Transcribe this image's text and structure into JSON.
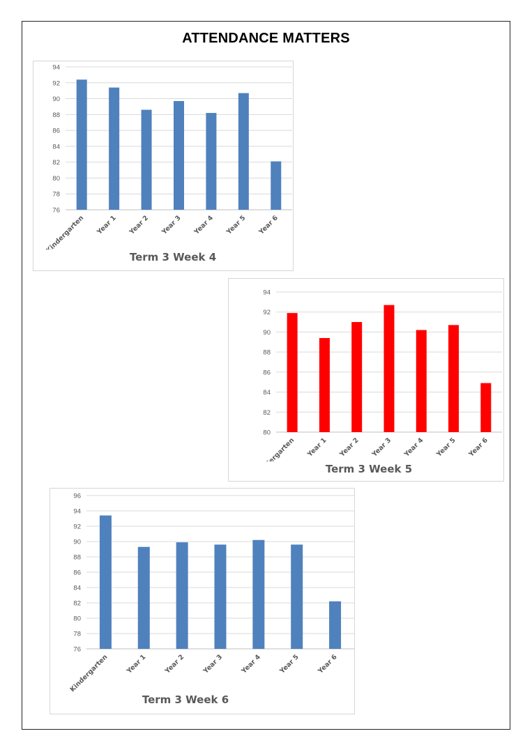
{
  "page": {
    "title": "ATTENDANCE MATTERS"
  },
  "chart_data": [
    {
      "type": "bar",
      "title": "Term 3 Week 4",
      "categories": [
        "Kindergarten",
        "Year 1",
        "Year 2",
        "Year 3",
        "Year 4",
        "Year 5",
        "Year 6"
      ],
      "values": [
        92.4,
        91.4,
        88.6,
        89.7,
        88.2,
        90.7,
        82.1
      ],
      "ylim": [
        76,
        94
      ],
      "yticks": [
        76,
        78,
        80,
        82,
        84,
        86,
        88,
        90,
        92,
        94
      ],
      "color": "#4f81bd",
      "grid": true,
      "legend": "none"
    },
    {
      "type": "bar",
      "title": "Term 3 Week 5",
      "categories": [
        "Kindergarten",
        "Year 1",
        "Year 2",
        "Year 3",
        "Year 4",
        "Year 5",
        "Year 6"
      ],
      "values": [
        91.9,
        89.4,
        91.0,
        92.7,
        90.2,
        90.7,
        84.9
      ],
      "ylim": [
        80,
        94
      ],
      "yticks": [
        80,
        82,
        84,
        86,
        88,
        90,
        92,
        94
      ],
      "color": "#ff0000",
      "grid": true,
      "legend": "none"
    },
    {
      "type": "bar",
      "title": "Term 3 Week 6",
      "categories": [
        "Kindergarten",
        "Year 1",
        "Year 2",
        "Year 3",
        "Year 4",
        "Year 5",
        "Year 6"
      ],
      "values": [
        93.4,
        89.3,
        89.9,
        89.6,
        90.2,
        89.6,
        82.2
      ],
      "ylim": [
        76,
        96
      ],
      "yticks": [
        76,
        78,
        80,
        82,
        84,
        86,
        88,
        90,
        92,
        94,
        96
      ],
      "color": "#4f81bd",
      "grid": true,
      "legend": "none"
    }
  ]
}
